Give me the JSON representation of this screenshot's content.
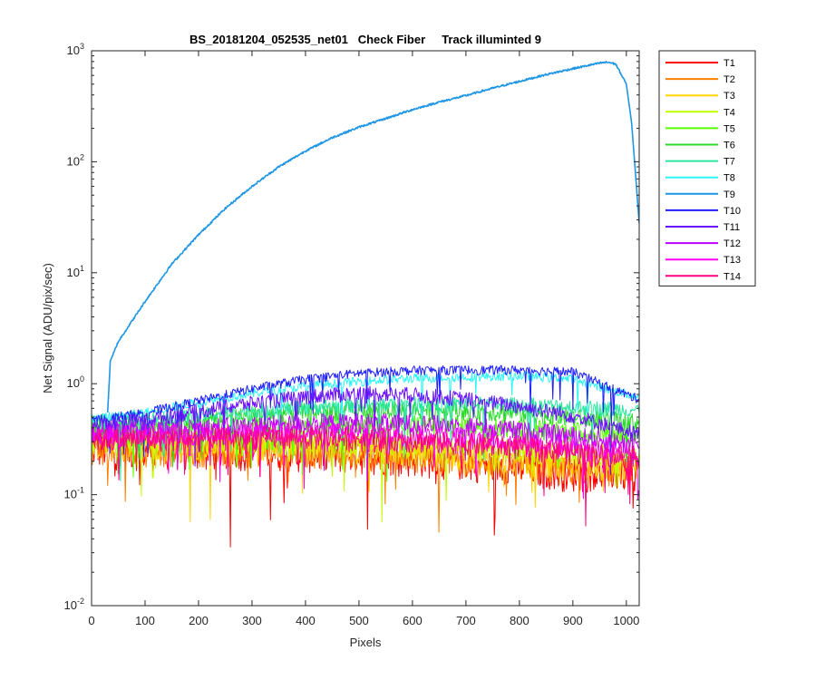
{
  "chart_data": {
    "type": "line",
    "title": "BS_20181204_052535_net01   Check Fiber     Track illuminted 9",
    "xlabel": "Pixels",
    "ylabel": "Net Signal (ADU/pix/sec)",
    "xlim": [
      0,
      1024
    ],
    "ylim": [
      0.01,
      1000
    ],
    "yscale": "log",
    "x_ticks": [
      "0",
      "100",
      "200",
      "300",
      "400",
      "500",
      "600",
      "700",
      "800",
      "900",
      "1000"
    ],
    "y_ticks": [
      {
        "base": "10",
        "exp": "-2",
        "value": 0.01
      },
      {
        "base": "10",
        "exp": "-1",
        "value": 0.1
      },
      {
        "base": "10",
        "exp": "0",
        "value": 1
      },
      {
        "base": "10",
        "exp": "1",
        "value": 10
      },
      {
        "base": "10",
        "exp": "2",
        "value": 100
      },
      {
        "base": "10",
        "exp": "3",
        "value": 1000
      }
    ],
    "grid": false,
    "legend_position": "outside-top-right",
    "series": [
      {
        "name": "T1",
        "color": "#ff0000",
        "x": [
          0,
          100,
          200,
          300,
          400,
          500,
          600,
          700,
          800,
          900,
          1024
        ],
        "values": [
          0.26,
          0.25,
          0.25,
          0.25,
          0.24,
          0.23,
          0.22,
          0.2,
          0.18,
          0.16,
          0.16
        ],
        "noise": 0.22
      },
      {
        "name": "T2",
        "color": "#ff7f00",
        "x": [
          0,
          100,
          200,
          300,
          400,
          500,
          600,
          700,
          800,
          900,
          1024
        ],
        "values": [
          0.27,
          0.26,
          0.26,
          0.26,
          0.25,
          0.24,
          0.23,
          0.21,
          0.19,
          0.17,
          0.17
        ],
        "noise": 0.2
      },
      {
        "name": "T3",
        "color": "#ffd500",
        "x": [
          0,
          100,
          200,
          300,
          400,
          500,
          600,
          700,
          800,
          900,
          1024
        ],
        "values": [
          0.29,
          0.28,
          0.28,
          0.28,
          0.27,
          0.26,
          0.25,
          0.23,
          0.21,
          0.19,
          0.18
        ],
        "noise": 0.18
      },
      {
        "name": "T4",
        "color": "#bfff00",
        "x": [
          0,
          100,
          200,
          300,
          400,
          500,
          600,
          700,
          800,
          900,
          1024
        ],
        "values": [
          0.32,
          0.31,
          0.31,
          0.31,
          0.3,
          0.3,
          0.29,
          0.27,
          0.26,
          0.24,
          0.23
        ],
        "noise": 0.16
      },
      {
        "name": "T5",
        "color": "#55ff00",
        "x": [
          0,
          100,
          200,
          300,
          400,
          500,
          600,
          700,
          800,
          900,
          1024
        ],
        "values": [
          0.38,
          0.37,
          0.38,
          0.4,
          0.42,
          0.43,
          0.43,
          0.42,
          0.4,
          0.37,
          0.34
        ],
        "noise": 0.14
      },
      {
        "name": "T6",
        "color": "#2bd92b",
        "x": [
          0,
          100,
          200,
          300,
          400,
          500,
          600,
          700,
          800,
          900,
          1024
        ],
        "values": [
          0.42,
          0.43,
          0.47,
          0.52,
          0.56,
          0.58,
          0.59,
          0.58,
          0.55,
          0.5,
          0.45
        ],
        "noise": 0.12
      },
      {
        "name": "T7",
        "color": "#2be6a0",
        "x": [
          0,
          100,
          200,
          300,
          400,
          500,
          600,
          700,
          800,
          900,
          1024
        ],
        "values": [
          0.46,
          0.48,
          0.52,
          0.58,
          0.62,
          0.65,
          0.66,
          0.66,
          0.65,
          0.62,
          0.58
        ],
        "noise": 0.1
      },
      {
        "name": "T8",
        "color": "#2bf5f5",
        "x": [
          0,
          100,
          200,
          300,
          400,
          500,
          600,
          700,
          800,
          900,
          1024
        ],
        "values": [
          0.48,
          0.55,
          0.68,
          0.82,
          0.95,
          1.05,
          1.12,
          1.15,
          1.18,
          1.1,
          0.75
        ],
        "noise": 0.06
      },
      {
        "name": "T9",
        "color": "#1e96e6",
        "x": [
          30,
          35,
          50,
          100,
          150,
          200,
          250,
          300,
          350,
          400,
          450,
          500,
          550,
          600,
          650,
          700,
          750,
          800,
          850,
          900,
          950,
          965,
          980,
          1000,
          1010,
          1024
        ],
        "values": [
          0.55,
          1.6,
          2.4,
          5.5,
          12,
          22,
          38,
          60,
          90,
          125,
          165,
          205,
          245,
          295,
          345,
          395,
          460,
          530,
          610,
          690,
          775,
          790,
          760,
          500,
          220,
          28
        ],
        "noise": 0
      },
      {
        "name": "T10",
        "color": "#1f1fff",
        "x": [
          0,
          100,
          200,
          300,
          400,
          500,
          600,
          700,
          800,
          900,
          1024
        ],
        "values": [
          0.47,
          0.55,
          0.7,
          0.9,
          1.1,
          1.25,
          1.32,
          1.33,
          1.33,
          1.28,
          0.72
        ],
        "noise": 0.06
      },
      {
        "name": "T11",
        "color": "#6a0fff",
        "x": [
          0,
          100,
          200,
          300,
          400,
          500,
          600,
          700,
          800,
          900,
          1024
        ],
        "values": [
          0.43,
          0.47,
          0.57,
          0.67,
          0.77,
          0.82,
          0.8,
          0.73,
          0.63,
          0.52,
          0.35
        ],
        "noise": 0.1
      },
      {
        "name": "T12",
        "color": "#bf00ff",
        "x": [
          0,
          100,
          200,
          300,
          400,
          500,
          600,
          700,
          800,
          900,
          1024
        ],
        "values": [
          0.38,
          0.38,
          0.4,
          0.42,
          0.44,
          0.45,
          0.44,
          0.42,
          0.38,
          0.34,
          0.28
        ],
        "noise": 0.13
      },
      {
        "name": "T13",
        "color": "#ff00f0",
        "x": [
          0,
          100,
          200,
          300,
          400,
          500,
          600,
          700,
          800,
          900,
          1024
        ],
        "values": [
          0.35,
          0.35,
          0.36,
          0.37,
          0.37,
          0.36,
          0.35,
          0.33,
          0.3,
          0.27,
          0.24
        ],
        "noise": 0.14
      },
      {
        "name": "T14",
        "color": "#ff0080",
        "x": [
          0,
          100,
          200,
          300,
          400,
          500,
          600,
          700,
          800,
          900,
          1024
        ],
        "values": [
          0.32,
          0.32,
          0.32,
          0.33,
          0.33,
          0.32,
          0.31,
          0.29,
          0.27,
          0.24,
          0.22
        ],
        "noise": 0.15
      }
    ]
  }
}
